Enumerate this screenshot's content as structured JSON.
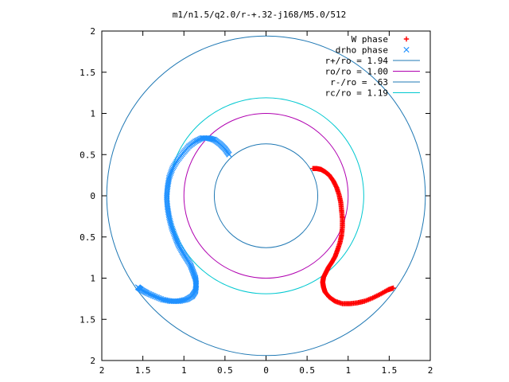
{
  "chart_data": {
    "type": "scatter",
    "title": "m1/n1.5/q2.0/r-+.32-j168/M5.0/512",
    "xlim": [
      -2,
      2
    ],
    "ylim": [
      -2,
      2
    ],
    "xticks": [
      -2,
      -1.5,
      -1,
      -0.5,
      0,
      0.5,
      1,
      1.5,
      2
    ],
    "xtick_labels": [
      "2",
      "1.5",
      "1",
      "0.5",
      "0",
      "0.5",
      "1",
      "1.5",
      "2"
    ],
    "yticks": [
      2,
      1.5,
      1,
      0.5,
      0,
      -0.5,
      -1,
      -1.5,
      -2
    ],
    "ytick_labels": [
      "2",
      "1.5",
      "1",
      "0.5",
      "0",
      "0.5",
      "1",
      "1.5",
      "2"
    ],
    "grid": false,
    "legend_position": "top-right",
    "series": [
      {
        "name": "W phase",
        "kind": "points",
        "marker": "+",
        "color": "#ff0000",
        "points": [
          [
            0.57,
            0.33
          ],
          [
            0.62,
            0.33
          ],
          [
            0.67,
            0.32
          ],
          [
            0.72,
            0.29
          ],
          [
            0.77,
            0.25
          ],
          [
            0.82,
            0.18
          ],
          [
            0.86,
            0.1
          ],
          [
            0.89,
            0.01
          ],
          [
            0.91,
            -0.08
          ],
          [
            0.92,
            -0.18
          ],
          [
            0.93,
            -0.28
          ],
          [
            0.93,
            -0.38
          ],
          [
            0.92,
            -0.48
          ],
          [
            0.9,
            -0.57
          ],
          [
            0.87,
            -0.66
          ],
          [
            0.84,
            -0.74
          ],
          [
            0.8,
            -0.81
          ],
          [
            0.76,
            -0.87
          ],
          [
            0.73,
            -0.93
          ],
          [
            0.7,
            -0.99
          ],
          [
            0.69,
            -1.05
          ],
          [
            0.7,
            -1.11
          ],
          [
            0.72,
            -1.17
          ],
          [
            0.77,
            -1.23
          ],
          [
            0.84,
            -1.28
          ],
          [
            0.93,
            -1.31
          ],
          [
            1.02,
            -1.31
          ],
          [
            1.11,
            -1.3
          ],
          [
            1.2,
            -1.28
          ],
          [
            1.3,
            -1.24
          ],
          [
            1.4,
            -1.19
          ],
          [
            1.49,
            -1.14
          ],
          [
            1.55,
            -1.12
          ]
        ]
      },
      {
        "name": "drho phase",
        "kind": "points",
        "marker": "x",
        "color": "#1e90ff",
        "points": [
          [
            -0.45,
            0.5
          ],
          [
            -0.5,
            0.57
          ],
          [
            -0.56,
            0.63
          ],
          [
            -0.63,
            0.68
          ],
          [
            -0.7,
            0.7
          ],
          [
            -0.78,
            0.7
          ],
          [
            -0.86,
            0.66
          ],
          [
            -0.94,
            0.6
          ],
          [
            -1.01,
            0.52
          ],
          [
            -1.08,
            0.43
          ],
          [
            -1.14,
            0.33
          ],
          [
            -1.18,
            0.22
          ],
          [
            -1.2,
            0.1
          ],
          [
            -1.21,
            -0.02
          ],
          [
            -1.2,
            -0.14
          ],
          [
            -1.18,
            -0.26
          ],
          [
            -1.15,
            -0.38
          ],
          [
            -1.11,
            -0.49
          ],
          [
            -1.07,
            -0.59
          ],
          [
            -1.02,
            -0.68
          ],
          [
            -0.97,
            -0.76
          ],
          [
            -0.92,
            -0.84
          ],
          [
            -0.89,
            -0.92
          ],
          [
            -0.86,
            -1.0
          ],
          [
            -0.85,
            -1.08
          ],
          [
            -0.86,
            -1.16
          ],
          [
            -0.9,
            -1.22
          ],
          [
            -0.97,
            -1.26
          ],
          [
            -1.06,
            -1.28
          ],
          [
            -1.16,
            -1.28
          ],
          [
            -1.26,
            -1.26
          ],
          [
            -1.36,
            -1.22
          ],
          [
            -1.45,
            -1.18
          ],
          [
            -1.52,
            -1.14
          ],
          [
            -1.56,
            -1.11
          ]
        ]
      },
      {
        "name": "r+/ro = 1.94",
        "kind": "circle",
        "radius": 1.94,
        "color": "#1f78b4"
      },
      {
        "name": "ro/ro = 1.00",
        "kind": "circle",
        "radius": 1.0,
        "color": "#b000b0"
      },
      {
        "name": "r-/ro = .63",
        "kind": "circle",
        "radius": 0.63,
        "color": "#1f78b4"
      },
      {
        "name": "rc/ro = 1.19",
        "kind": "circle",
        "radius": 1.19,
        "color": "#00c8d0"
      }
    ]
  }
}
